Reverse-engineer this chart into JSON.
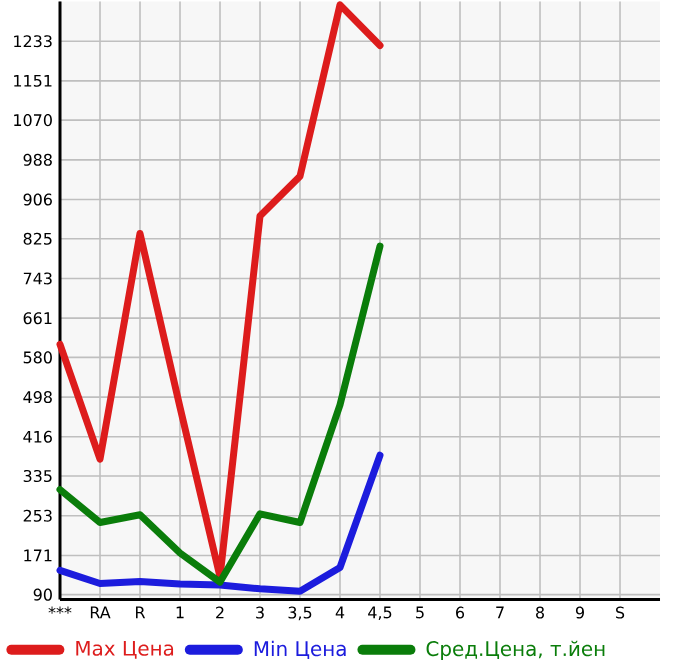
{
  "chart_data": {
    "type": "line",
    "categories": [
      "***",
      "RA",
      "R",
      "1",
      "2",
      "3",
      "3,5",
      "4",
      "4,5",
      "5",
      "6",
      "7",
      "8",
      "9",
      "S"
    ],
    "series": [
      {
        "name": "Max Цена",
        "color": "#dd1c1c",
        "values": [
          607,
          370,
          836,
          477,
          127,
          872,
          954,
          1308,
          1224,
          null,
          null,
          null,
          null,
          null,
          null
        ]
      },
      {
        "name": "Min Цена",
        "color": "#1c1cdd",
        "values": [
          140,
          113,
          117,
          112,
          110,
          102,
          97,
          146,
          378,
          null,
          null,
          null,
          null,
          null,
          null
        ]
      },
      {
        "name": "Сред.Цена, т.йен",
        "color": "#0a7d0a",
        "values": [
          307,
          239,
          255,
          176,
          116,
          257,
          239,
          482,
          810,
          null,
          null,
          null,
          null,
          null,
          null
        ]
      }
    ],
    "ylim": [
      80,
      1315
    ],
    "yticks": [
      90,
      171,
      253,
      335,
      416,
      498,
      580,
      661,
      743,
      825,
      906,
      988,
      1070,
      1151,
      1233
    ],
    "grid": true,
    "legend": "bottom",
    "marker": "none",
    "line_style": "solid"
  }
}
